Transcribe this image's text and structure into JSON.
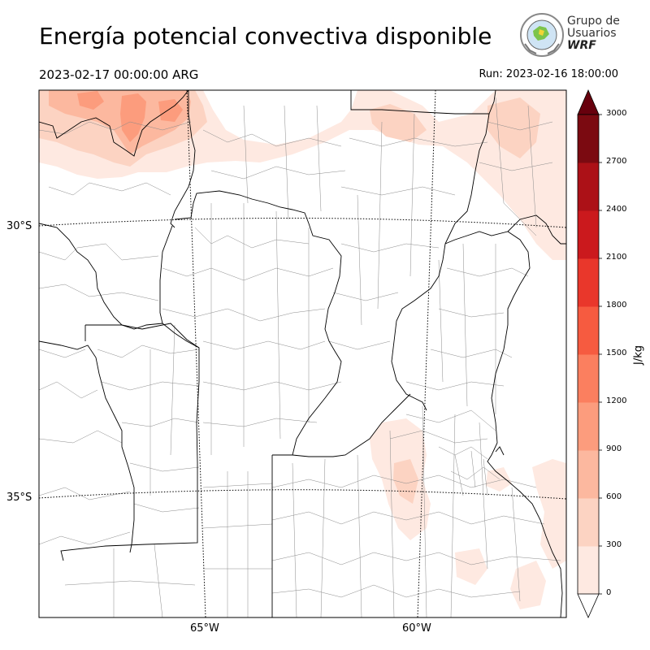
{
  "title": "Energía potencial convectiva disponible",
  "valid_time": "2023-02-17 00:00:00 ARG",
  "run_time": "Run: 2023-02-16 18:00:00",
  "logo": {
    "line1": "Grupo de",
    "line2": "Usuarios",
    "line3": "WRF",
    "icon": "globe-seal-icon"
  },
  "lat_labels": [
    "30°S",
    "35°S"
  ],
  "lon_labels": [
    "65°W",
    "60°W"
  ],
  "colorbar": {
    "label": "J/kg",
    "ticks": [
      "0",
      "300",
      "600",
      "900",
      "1200",
      "1500",
      "1800",
      "2100",
      "2400",
      "2700",
      "3000"
    ],
    "colors": [
      "#fee9e1",
      "#fcd3c2",
      "#fcb89f",
      "#fc9c7d",
      "#fb7f5f",
      "#f65b40",
      "#e9372b",
      "#cb191d",
      "#ac1117",
      "#7b0a11"
    ],
    "extend": "both"
  },
  "map": {
    "field": "CAPE",
    "units": "J/kg",
    "max_shaded_level_observed": "600-900",
    "colors": {
      "border": "#000000",
      "dept": "#8a8a8a",
      "grid": "#000000"
    }
  }
}
